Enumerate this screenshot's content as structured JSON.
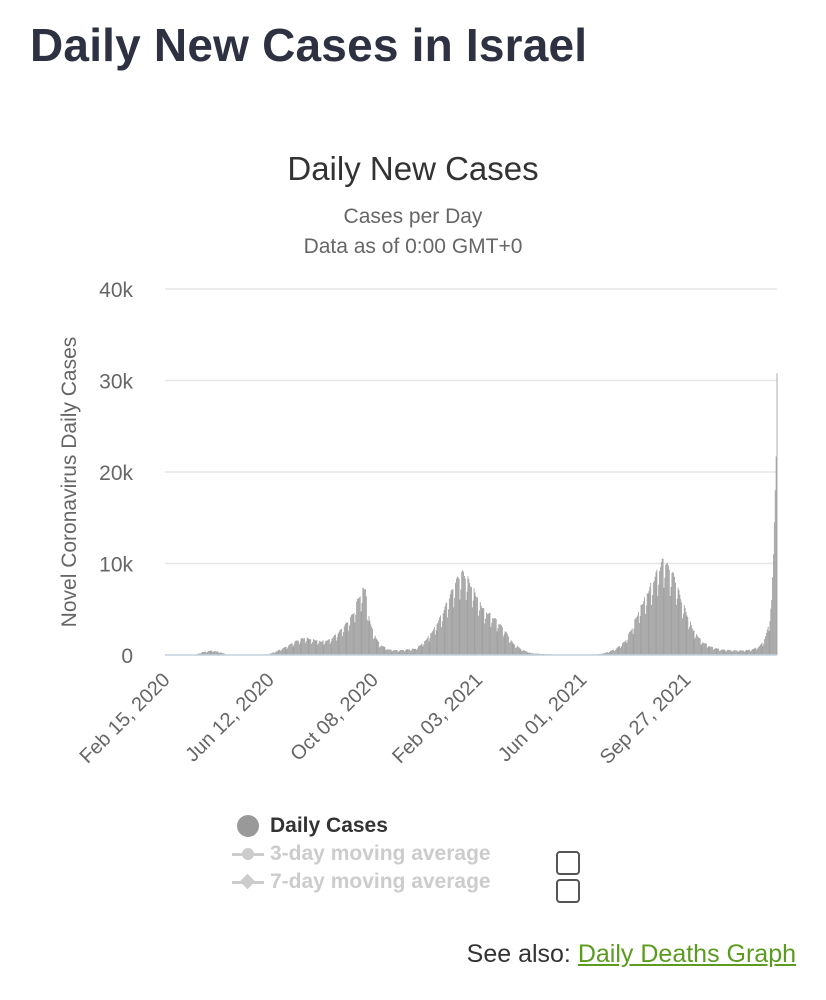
{
  "page": {
    "title": "Daily New Cases in Israel"
  },
  "legend": {
    "daily": "Daily Cases",
    "avg3": "3-day moving average",
    "avg7": "7-day moving average"
  },
  "see_also": {
    "prefix": "See also:",
    "link": "Daily Deaths Graph"
  },
  "colors": {
    "bars": "#9e9e9e",
    "grid": "#e6e6e6",
    "axis": "#c0d0e0",
    "link": "#5b9b1f"
  },
  "chart_data": {
    "type": "bar",
    "title": "Daily New Cases",
    "subtitle": "Cases per Day",
    "subtitle2": "Data as of 0:00 GMT+0",
    "ylabel": "Novel Coronavirus Daily Cases",
    "ylim": [
      0,
      40000
    ],
    "yticks": [
      0,
      10000,
      20000,
      30000,
      40000
    ],
    "ytick_labels": [
      "0",
      "10k",
      "20k",
      "30k",
      "40k"
    ],
    "xtick_labels": [
      "Feb 15, 2020",
      "Jun 12, 2020",
      "Oct 08, 2020",
      "Feb 03, 2021",
      "Jun 01, 2021",
      "Sep 27, 2021"
    ],
    "x_start": "2020-02-15",
    "x_end": "2022-01-08",
    "grid": true,
    "legend": "bottom-left",
    "series": [
      {
        "name": "Daily Cases",
        "key_points": [
          [
            "2020-02-15",
            0
          ],
          [
            "2020-03-20",
            0
          ],
          [
            "2020-03-28",
            300
          ],
          [
            "2020-04-08",
            500
          ],
          [
            "2020-04-18",
            300
          ],
          [
            "2020-04-25",
            50
          ],
          [
            "2020-05-10",
            10
          ],
          [
            "2020-06-01",
            20
          ],
          [
            "2020-06-12",
            100
          ],
          [
            "2020-06-20",
            400
          ],
          [
            "2020-07-01",
            900
          ],
          [
            "2020-07-12",
            1500
          ],
          [
            "2020-07-22",
            1900
          ],
          [
            "2020-08-01",
            1700
          ],
          [
            "2020-08-10",
            1500
          ],
          [
            "2020-08-20",
            1700
          ],
          [
            "2020-08-30",
            2500
          ],
          [
            "2020-09-08",
            3500
          ],
          [
            "2020-09-15",
            4500
          ],
          [
            "2020-09-22",
            6500
          ],
          [
            "2020-09-29",
            7500
          ],
          [
            "2020-10-02",
            4500
          ],
          [
            "2020-10-08",
            2500
          ],
          [
            "2020-10-15",
            1200
          ],
          [
            "2020-10-25",
            600
          ],
          [
            "2020-11-05",
            500
          ],
          [
            "2020-11-15",
            600
          ],
          [
            "2020-11-25",
            700
          ],
          [
            "2020-12-05",
            1500
          ],
          [
            "2020-12-15",
            2800
          ],
          [
            "2020-12-25",
            4500
          ],
          [
            "2021-01-05",
            7000
          ],
          [
            "2021-01-12",
            8500
          ],
          [
            "2021-01-18",
            9000
          ],
          [
            "2021-01-25",
            8000
          ],
          [
            "2021-02-02",
            6500
          ],
          [
            "2021-02-10",
            5000
          ],
          [
            "2021-02-20",
            4200
          ],
          [
            "2021-02-27",
            3500
          ],
          [
            "2021-03-07",
            2500
          ],
          [
            "2021-03-15",
            1300
          ],
          [
            "2021-03-25",
            600
          ],
          [
            "2021-04-05",
            200
          ],
          [
            "2021-04-20",
            100
          ],
          [
            "2021-05-10",
            30
          ],
          [
            "2021-06-10",
            20
          ],
          [
            "2021-06-20",
            80
          ],
          [
            "2021-06-30",
            300
          ],
          [
            "2021-07-10",
            700
          ],
          [
            "2021-07-20",
            1500
          ],
          [
            "2021-07-28",
            3000
          ],
          [
            "2021-08-05",
            5000
          ],
          [
            "2021-08-15",
            7000
          ],
          [
            "2021-08-25",
            9000
          ],
          [
            "2021-09-02",
            10500
          ],
          [
            "2021-09-07",
            9500
          ],
          [
            "2021-09-14",
            8500
          ],
          [
            "2021-09-20",
            6500
          ],
          [
            "2021-09-28",
            4500
          ],
          [
            "2021-10-05",
            2800
          ],
          [
            "2021-10-15",
            1500
          ],
          [
            "2021-10-25",
            900
          ],
          [
            "2021-11-05",
            600
          ],
          [
            "2021-11-20",
            500
          ],
          [
            "2021-12-01",
            500
          ],
          [
            "2021-12-10",
            600
          ],
          [
            "2021-12-18",
            900
          ],
          [
            "2021-12-24",
            1500
          ],
          [
            "2021-12-29",
            3000
          ],
          [
            "2022-01-02",
            6000
          ],
          [
            "2022-01-04",
            11000
          ],
          [
            "2022-01-06",
            18000
          ],
          [
            "2022-01-07",
            21700
          ],
          [
            "2022-01-08",
            30800
          ]
        ]
      }
    ]
  }
}
